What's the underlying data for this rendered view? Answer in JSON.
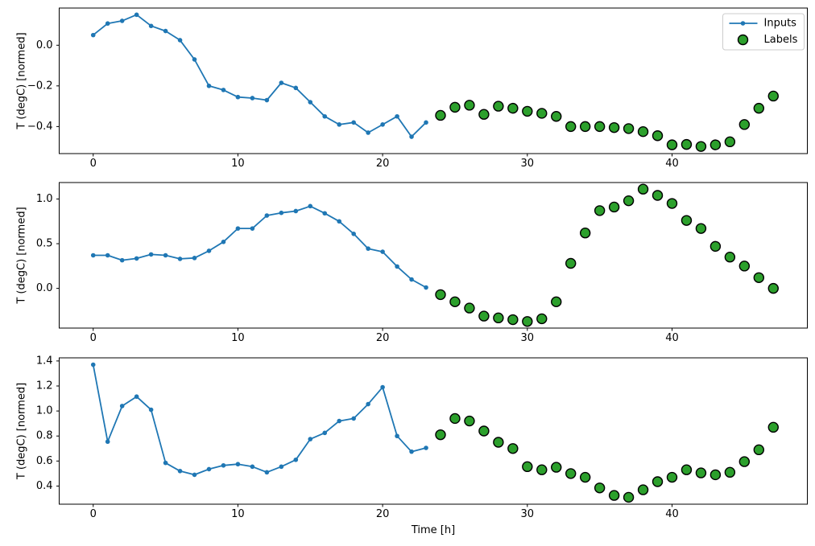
{
  "figure": {
    "background": "#ffffff",
    "x_axis_label": "Time [h]",
    "y_axis_label": "T (degC) [normed]",
    "x_tick_labels": [
      "0",
      "10",
      "20",
      "30",
      "40"
    ]
  },
  "legend": {
    "position": "upper right",
    "entries": [
      {
        "label": "Inputs",
        "marker": "line-with-dot",
        "color": "#1f77b4"
      },
      {
        "label": "Labels",
        "marker": "circle",
        "fill": "#2ca02c",
        "edge": "#000000"
      }
    ]
  },
  "colors": {
    "inputs_line": "#1f77b4",
    "labels_fill": "#2ca02c",
    "labels_edge": "#000000",
    "spine": "#000000",
    "legend_border": "#cccccc",
    "legend_background": "#ffffff"
  },
  "chart_data": [
    {
      "type": "line+scatter",
      "title": "",
      "xlabel": "",
      "ylabel": "T (degC) [normed]",
      "grid": false,
      "legend_position": "upper right",
      "xlim": [
        -2.35,
        49.35
      ],
      "ylim": [
        -0.533,
        0.183
      ],
      "x_ticks": [
        0,
        10,
        20,
        30,
        40
      ],
      "y_ticks": [
        {
          "label": "0.0",
          "value": 0.0
        },
        {
          "label": "−0.2",
          "value": -0.2
        },
        {
          "label": "−0.4",
          "value": -0.4
        }
      ],
      "series": [
        {
          "name": "Inputs",
          "type": "line",
          "color": "#1f77b4",
          "x": [
            0,
            1,
            2,
            3,
            4,
            5,
            6,
            7,
            8,
            9,
            10,
            11,
            12,
            13,
            14,
            15,
            16,
            17,
            18,
            19,
            20,
            21,
            22,
            23
          ],
          "values": [
            0.05,
            0.107,
            0.12,
            0.15,
            0.095,
            0.07,
            0.025,
            -0.07,
            -0.2,
            -0.22,
            -0.255,
            -0.26,
            -0.27,
            -0.185,
            -0.21,
            -0.28,
            -0.35,
            -0.39,
            -0.38,
            -0.43,
            -0.39,
            -0.35,
            -0.45,
            -0.38
          ]
        },
        {
          "name": "Labels",
          "type": "scatter",
          "color": "#2ca02c",
          "edge_color": "#000000",
          "x": [
            24,
            25,
            26,
            27,
            28,
            29,
            30,
            31,
            32,
            33,
            34,
            35,
            36,
            37,
            38,
            39,
            40,
            41,
            42,
            43,
            44,
            45,
            46,
            47
          ],
          "values": [
            -0.345,
            -0.305,
            -0.295,
            -0.34,
            -0.3,
            -0.31,
            -0.325,
            -0.335,
            -0.35,
            -0.4,
            -0.4,
            -0.4,
            -0.405,
            -0.41,
            -0.425,
            -0.445,
            -0.49,
            -0.488,
            -0.498,
            -0.49,
            -0.475,
            -0.39,
            -0.31,
            -0.25
          ]
        }
      ]
    },
    {
      "type": "line+scatter",
      "title": "",
      "xlabel": "",
      "ylabel": "T (degC) [normed]",
      "grid": false,
      "legend_position": null,
      "xlim": [
        -2.35,
        49.35
      ],
      "ylim": [
        -0.444,
        1.184
      ],
      "x_ticks": [
        0,
        10,
        20,
        30,
        40
      ],
      "y_ticks": [
        {
          "label": "1.0",
          "value": 1.0
        },
        {
          "label": "0.5",
          "value": 0.5
        },
        {
          "label": "0.0",
          "value": 0.0
        }
      ],
      "series": [
        {
          "name": "Inputs",
          "type": "line",
          "color": "#1f77b4",
          "x": [
            0,
            1,
            2,
            3,
            4,
            5,
            6,
            7,
            8,
            9,
            10,
            11,
            12,
            13,
            14,
            15,
            16,
            17,
            18,
            19,
            20,
            21,
            22,
            23
          ],
          "values": [
            0.37,
            0.37,
            0.315,
            0.335,
            0.38,
            0.37,
            0.33,
            0.34,
            0.42,
            0.52,
            0.67,
            0.67,
            0.815,
            0.845,
            0.865,
            0.92,
            0.84,
            0.75,
            0.61,
            0.445,
            0.41,
            0.245,
            0.1,
            0.01
          ]
        },
        {
          "name": "Labels",
          "type": "scatter",
          "color": "#2ca02c",
          "edge_color": "#000000",
          "x": [
            24,
            25,
            26,
            27,
            28,
            29,
            30,
            31,
            32,
            33,
            34,
            35,
            36,
            37,
            38,
            39,
            40,
            41,
            42,
            43,
            44,
            45,
            46,
            47
          ],
          "values": [
            -0.07,
            -0.15,
            -0.22,
            -0.31,
            -0.33,
            -0.35,
            -0.37,
            -0.34,
            -0.15,
            0.28,
            0.62,
            0.87,
            0.91,
            0.98,
            1.11,
            1.04,
            0.95,
            0.76,
            0.67,
            0.47,
            0.35,
            0.25,
            0.12,
            0.0
          ]
        }
      ]
    },
    {
      "type": "line+scatter",
      "title": "",
      "xlabel": "Time [h]",
      "ylabel": "T (degC) [normed]",
      "grid": false,
      "legend_position": null,
      "xlim": [
        -2.35,
        49.35
      ],
      "ylim": [
        0.255,
        1.425
      ],
      "x_ticks": [
        0,
        10,
        20,
        30,
        40
      ],
      "y_ticks": [
        {
          "label": "1.4",
          "value": 1.4
        },
        {
          "label": "1.2",
          "value": 1.2
        },
        {
          "label": "1.0",
          "value": 1.0
        },
        {
          "label": "0.8",
          "value": 0.8
        },
        {
          "label": "0.6",
          "value": 0.6
        },
        {
          "label": "0.4",
          "value": 0.4
        }
      ],
      "series": [
        {
          "name": "Inputs",
          "type": "line",
          "color": "#1f77b4",
          "x": [
            0,
            1,
            2,
            3,
            4,
            5,
            6,
            7,
            8,
            9,
            10,
            11,
            12,
            13,
            14,
            15,
            16,
            17,
            18,
            19,
            20,
            21,
            22,
            23
          ],
          "values": [
            1.37,
            0.755,
            1.04,
            1.115,
            1.01,
            0.585,
            0.52,
            0.49,
            0.535,
            0.565,
            0.575,
            0.555,
            0.51,
            0.555,
            0.61,
            0.775,
            0.825,
            0.92,
            0.94,
            1.055,
            1.19,
            0.8,
            0.675,
            0.705
          ]
        },
        {
          "name": "Labels",
          "type": "scatter",
          "color": "#2ca02c",
          "edge_color": "#000000",
          "x": [
            24,
            25,
            26,
            27,
            28,
            29,
            30,
            31,
            32,
            33,
            34,
            35,
            36,
            37,
            38,
            39,
            40,
            41,
            42,
            43,
            44,
            45,
            46,
            47
          ],
          "values": [
            0.81,
            0.94,
            0.92,
            0.84,
            0.75,
            0.7,
            0.555,
            0.53,
            0.55,
            0.5,
            0.47,
            0.385,
            0.325,
            0.31,
            0.37,
            0.435,
            0.47,
            0.53,
            0.505,
            0.49,
            0.51,
            0.595,
            0.69,
            0.87
          ]
        }
      ]
    }
  ]
}
